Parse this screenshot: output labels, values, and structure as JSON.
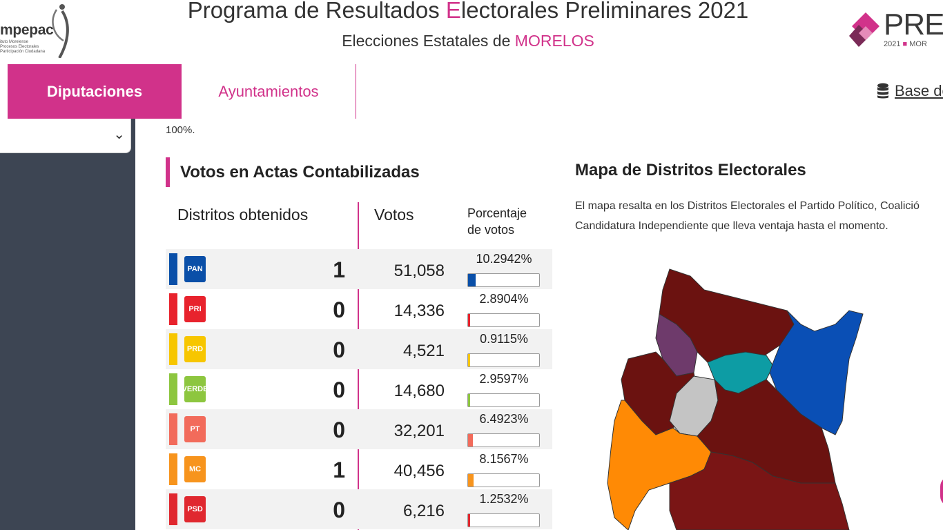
{
  "header": {
    "left_logo_text": "mpepac",
    "left_logo_lines": [
      "ituto Morelense",
      "Procesos Electorales",
      "Participación Ciudadana"
    ],
    "title_part1": "Programa de Resultados ",
    "title_accent": "E",
    "title_part2": "lectorales Preliminares 2021",
    "subtitle_prefix": "Elecciones Estatales de ",
    "subtitle_state": "MORELOS",
    "right_logo_text": "PRE",
    "right_logo_last": "P",
    "right_logo_year": "2021",
    "right_logo_state": "MOR"
  },
  "tabs": [
    {
      "label": "Diputaciones",
      "active": true
    },
    {
      "label": "Ayuntamientos",
      "active": false
    }
  ],
  "database_link": {
    "label": "Base de",
    "icon": "database-icon"
  },
  "sidebar": {
    "select_icon": "chevron-down-icon"
  },
  "main": {
    "pct_note": "100%.",
    "section_title": "Votos en Actas Contabilizadas",
    "col_distritos": "Distritos obtenidos",
    "col_votos": "Votos",
    "col_pct_line1": "Porcentaje",
    "col_pct_line2": "de votos"
  },
  "parties": [
    {
      "name": "PAN",
      "logo_text": "PAN",
      "color": "#0a4fa8",
      "bar_color": "#0a4fa8",
      "districts": "1",
      "votes": "51,058",
      "pct": "10.2942%",
      "pct_value": 10.2942
    },
    {
      "name": "PRI",
      "logo_text": "PRI",
      "color": "#e8232d",
      "bar_color": "#e8232d",
      "districts": "0",
      "votes": "14,336",
      "pct": "2.8904%",
      "pct_value": 2.8904
    },
    {
      "name": "PRD",
      "logo_text": "PRD",
      "color": "#f7c600",
      "bar_color": "#f7c600",
      "districts": "0",
      "votes": "4,521",
      "pct": "0.9115%",
      "pct_value": 0.9115
    },
    {
      "name": "VERDE",
      "logo_text": "VERDE",
      "color": "#8dc63f",
      "bar_color": "#8dc63f",
      "districts": "0",
      "votes": "14,680",
      "pct": "2.9597%",
      "pct_value": 2.9597
    },
    {
      "name": "PT",
      "logo_text": "PT",
      "color": "#f26b5b",
      "bar_color": "#f26b5b",
      "districts": "0",
      "votes": "32,201",
      "pct": "6.4923%",
      "pct_value": 6.4923
    },
    {
      "name": "MC",
      "logo_text": "MC",
      "color": "#f7941d",
      "bar_color": "#f7941d",
      "districts": "1",
      "votes": "40,456",
      "pct": "8.1567%",
      "pct_value": 8.1567
    },
    {
      "name": "PSD",
      "logo_text": "PSD",
      "color": "#e0282f",
      "bar_color": "#e0282f",
      "districts": "0",
      "votes": "6,216",
      "pct": "1.2532%",
      "pct_value": 1.2532
    }
  ],
  "map": {
    "title": "Mapa de Distritos Electorales",
    "desc_line1": "El mapa resalta en los Distritos Electorales el Partido Político, Coalició",
    "desc_line2": "Candidatura Independiente que lleva ventaja hasta el momento.",
    "colors": {
      "maroon": "#6b1210",
      "maroon_mid": "#7a1515",
      "purple": "#6e3a6b",
      "teal": "#0d9ca4",
      "blue": "#0a4fb5",
      "gray": "#c4c4c4",
      "orange": "#ff8a05"
    }
  }
}
